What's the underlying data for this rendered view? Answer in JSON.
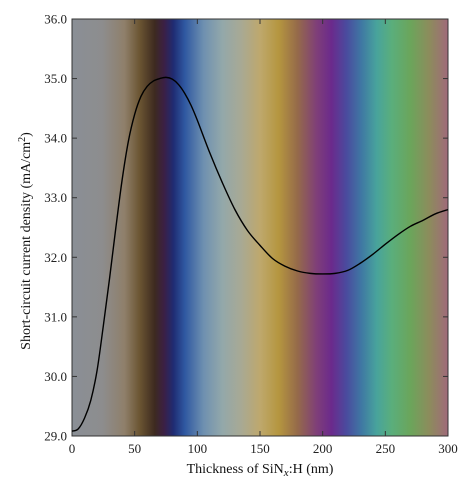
{
  "chart_data": {
    "type": "line",
    "xlabel": "Thickness of SiN",
    "xlabel_sub": "x",
    "xlabel_tail": ":H (nm)",
    "ylabel": "Short-circuit current density (mA/cm",
    "ylabel_sup": "2",
    "ylabel_tail": ")",
    "xlim": [
      0,
      300
    ],
    "ylim": [
      29.0,
      36.0
    ],
    "xticks": [
      0,
      50,
      100,
      150,
      200,
      250,
      300
    ],
    "xtick_labels": [
      "0",
      "50",
      "100",
      "150",
      "200",
      "250",
      "300"
    ],
    "yticks": [
      29.0,
      30.0,
      31.0,
      32.0,
      33.0,
      34.0,
      35.0,
      36.0
    ],
    "ytick_labels": [
      "29.0",
      "30.0",
      "31.0",
      "32.0",
      "33.0",
      "34.0",
      "35.0",
      "36.0"
    ],
    "grid": false,
    "background": "thin-film interference color gradient",
    "series": [
      {
        "color": "#000000",
        "x": [
          0,
          5,
          10,
          15,
          20,
          25,
          30,
          35,
          40,
          45,
          50,
          55,
          60,
          65,
          70,
          75,
          80,
          85,
          90,
          95,
          100,
          110,
          120,
          130,
          140,
          150,
          160,
          170,
          180,
          190,
          200,
          210,
          220,
          230,
          240,
          250,
          260,
          270,
          280,
          290,
          300
        ],
        "y": [
          29.08,
          29.12,
          29.3,
          29.6,
          30.1,
          30.85,
          31.65,
          32.5,
          33.3,
          33.95,
          34.4,
          34.7,
          34.87,
          34.96,
          35.0,
          35.02,
          34.99,
          34.9,
          34.75,
          34.55,
          34.3,
          33.75,
          33.25,
          32.8,
          32.45,
          32.2,
          31.98,
          31.85,
          31.77,
          31.73,
          31.72,
          31.73,
          31.78,
          31.9,
          32.05,
          32.22,
          32.38,
          32.52,
          32.62,
          32.73,
          32.8
        ]
      }
    ]
  }
}
